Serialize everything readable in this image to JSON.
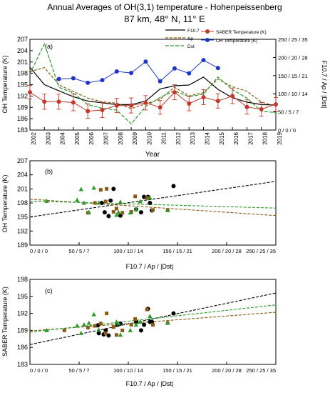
{
  "figure": {
    "title_line1": "Annual Averages of OH(3,1) temperature - Hohenpeissenberg",
    "title_line2": "87 km, 48° N, 11° E"
  },
  "chart_data": [
    {
      "panel": "(a)",
      "type": "line",
      "x": [
        2002,
        2003,
        2004,
        2005,
        2006,
        2007,
        2008,
        2009,
        2010,
        2011,
        2012,
        2013,
        2014,
        2015,
        2016,
        2017,
        2018,
        2019
      ],
      "xticks": [
        "2002",
        "2003",
        "2004",
        "2005",
        "2006",
        "2007",
        "2008",
        "2009",
        "2010",
        "2011",
        "2012",
        "2013",
        "2014",
        "2015",
        "2016",
        "2017",
        "2018",
        "2019"
      ],
      "xlabel": "Year",
      "ylabel_left": "OH Temperature (K)",
      "ylim_left": [
        183,
        207
      ],
      "yticks_left": [
        "183",
        "186",
        "189",
        "192",
        "195",
        "198",
        "201",
        "204",
        "207"
      ],
      "ylabel_right": "F10.7 / Ap / |Dst|",
      "ylim_right_F107": [
        0,
        250
      ],
      "yticks_right": [
        "0 / 0 / 0",
        "50 / 5 / 7",
        "100 / 10 / 14",
        "150 / 15 / 21",
        "200 / 20 / 28",
        "250 / 25 / 35"
      ],
      "legend": [
        "F10.7",
        "Ap",
        "Dst",
        "SABER Temperature (K)",
        "OH Temperature (K)"
      ],
      "series": [
        {
          "name": "F10.7",
          "axis": "right",
          "style": "solid",
          "color": "#000000",
          "values": [
            173,
            125,
            108,
            92,
            80,
            75,
            70,
            70,
            80,
            113,
            122,
            124,
            146,
            112,
            89,
            77,
            70,
            69
          ]
        },
        {
          "name": "Ap",
          "axis": "right",
          "style": "dashed",
          "color": "#8a5a19",
          "values": [
            161,
            172,
            125,
            106,
            88,
            78,
            74,
            59,
            72,
            85,
            118,
            94,
            103,
            140,
            119,
            107,
            77,
            66
          ]
        },
        {
          "name": "Dst",
          "axis": "right",
          "style": "dashed",
          "color": "#2e9a2e",
          "values": [
            155,
            238,
            118,
            102,
            70,
            60,
            55,
            17,
            65,
            90,
            108,
            92,
            99,
            146,
            111,
            88,
            52,
            48
          ]
        },
        {
          "name": "SABER Temperature (K)",
          "axis": "left",
          "color": "#c0392b",
          "values": [
            193.0,
            190.5,
            190.5,
            190.3,
            188.0,
            188.3,
            189.5,
            189.5,
            190.2,
            189.0,
            193.0,
            190.0,
            191.7,
            190.7,
            192.0,
            189.1,
            188.5,
            189.8
          ],
          "error": [
            1.8,
            2.0,
            2.0,
            2.2,
            1.9,
            2.0,
            1.9,
            2.0,
            1.9,
            1.8,
            2.0,
            1.9,
            2.0,
            1.9,
            2.0,
            1.9,
            1.8,
            1.8
          ]
        },
        {
          "name": "OH Temperature (K)",
          "axis": "left",
          "color": "#1f35c7",
          "x": [
            2004,
            2005,
            2006,
            2007,
            2008,
            2009,
            2010,
            2011,
            2012,
            2013,
            2014,
            2015
          ],
          "values": [
            196.5,
            196.7,
            195.5,
            196.2,
            198.5,
            198.1,
            201.1,
            195.9,
            199.3,
            198.0,
            201.5,
            199.4
          ]
        }
      ]
    },
    {
      "panel": "(b)",
      "type": "scatter",
      "ylabel": "OH Temperature (K)",
      "xlabel": "F10.7 / Ap / |Dst|",
      "ylim": [
        189,
        207
      ],
      "yticks": [
        "189",
        "192",
        "195",
        "198",
        "201",
        "204",
        "207"
      ],
      "xlim_F107": [
        0,
        250
      ],
      "xticks": [
        "0 / 0 / 0",
        "50 / 5 / 7",
        "100 / 10 / 14",
        "150 / 15 / 21",
        "200 / 20 / 28",
        "250 / 25 / 35"
      ],
      "series": [
        {
          "name": "F10.7",
          "marker": "circle",
          "color": "#000000",
          "points": [
            [
              73,
              198.0
            ],
            [
              76,
              196.0
            ],
            [
              80,
              195.2
            ],
            [
              82,
              198.5
            ],
            [
              85,
              201.0
            ],
            [
              92,
              195.3
            ],
            [
              108,
              196.6
            ],
            [
              113,
              196.0
            ],
            [
              116,
              199.3
            ],
            [
              120,
              199.3
            ],
            [
              122,
              198.0
            ],
            [
              124,
              196.4
            ],
            [
              146,
              201.6
            ]
          ],
          "fit": [
            [
              0,
              195.0
            ],
            [
              250,
              202.6
            ]
          ]
        },
        {
          "name": "Ap",
          "marker": "square",
          "color": "#8a5a19",
          "points": [
            [
              59,
              195.9
            ],
            [
              66,
              198.0
            ],
            [
              72,
              200.8
            ],
            [
              77,
              198.3
            ],
            [
              78,
              201.0
            ],
            [
              85,
              196.1
            ],
            [
              88,
              196.8
            ],
            [
              94,
              195.9
            ],
            [
              103,
              196.1
            ],
            [
              107,
              199.4
            ],
            [
              119,
              199.1
            ],
            [
              125,
              196.5
            ],
            [
              140,
              196.4
            ]
          ],
          "fit": [
            [
              0,
              198.8
            ],
            [
              250,
              195.3
            ]
          ]
        },
        {
          "name": "Dst",
          "marker": "triangle",
          "color": "#2e9a2e",
          "points": [
            [
              17,
              198.4
            ],
            [
              48,
              198.6
            ],
            [
              52,
              200.9
            ],
            [
              55,
              198.0
            ],
            [
              60,
              196.0
            ],
            [
              65,
              201.2
            ],
            [
              70,
              198.0
            ],
            [
              88,
              195.4
            ],
            [
              90,
              196.0
            ],
            [
              92,
              198.2
            ],
            [
              102,
              195.9
            ],
            [
              108,
              196.6
            ],
            [
              112,
              198.3
            ],
            [
              122,
              199.1
            ],
            [
              140,
              196.4
            ]
          ],
          "fit": [
            [
              0,
              198.4
            ],
            [
              250,
              196.9
            ]
          ]
        }
      ]
    },
    {
      "panel": "(c)",
      "type": "scatter",
      "ylabel": "SABER Temperature (K)",
      "xlabel": "F10.7 / Ap / |Dst|",
      "ylim": [
        183,
        198
      ],
      "yticks": [
        "183",
        "186",
        "189",
        "192",
        "195",
        "198"
      ],
      "xlim_F107": [
        0,
        250
      ],
      "xticks": [
        "0 / 0 / 0",
        "50 / 5 / 7",
        "100 / 10 / 14",
        "150 / 15 / 21",
        "200 / 20 / 28",
        "250 / 25 / 35"
      ],
      "series": [
        {
          "name": "F10.7",
          "marker": "circle",
          "color": "#000000",
          "points": [
            [
              69,
              189.9
            ],
            [
              70,
              188.5
            ],
            [
              75,
              188.3
            ],
            [
              77,
              189.0
            ],
            [
              80,
              188.1
            ],
            [
              89,
              190.0
            ],
            [
              92,
              190.2
            ],
            [
              108,
              190.5
            ],
            [
              113,
              189.0
            ],
            [
              116,
              190.0
            ],
            [
              120,
              192.8
            ],
            [
              122,
              190.5
            ],
            [
              124,
              190.5
            ],
            [
              146,
              192.0
            ]
          ],
          "fit": [
            [
              0,
              186.5
            ],
            [
              250,
              195.6
            ]
          ]
        },
        {
          "name": "Ap",
          "marker": "square",
          "color": "#8a5a19",
          "points": [
            [
              59,
              189.5
            ],
            [
              66,
              189.8
            ],
            [
              72,
              190.2
            ],
            [
              77,
              188.5
            ],
            [
              78,
              192.0
            ],
            [
              85,
              189.6
            ],
            [
              88,
              188.2
            ],
            [
              94,
              189.0
            ],
            [
              103,
              190.0
            ],
            [
              107,
              191.0
            ],
            [
              119,
              192.7
            ],
            [
              125,
              190.0
            ],
            [
              140,
              190.3
            ],
            [
              35,
              189.0
            ]
          ],
          "fit": [
            [
              0,
              188.9
            ],
            [
              250,
              192.2
            ]
          ]
        },
        {
          "name": "Dst",
          "marker": "triangle",
          "color": "#2e9a2e",
          "points": [
            [
              17,
              189.0
            ],
            [
              48,
              189.8
            ],
            [
              52,
              188.5
            ],
            [
              55,
              190.0
            ],
            [
              60,
              190.3
            ],
            [
              65,
              191.8
            ],
            [
              70,
              189.1
            ],
            [
              88,
              190.5
            ],
            [
              90,
              190.2
            ],
            [
              92,
              188.2
            ],
            [
              102,
              189.0
            ],
            [
              108,
              190.0
            ],
            [
              112,
              190.5
            ],
            [
              122,
              191.5
            ],
            [
              140,
              190.3
            ]
          ],
          "fit": [
            [
              0,
              188.7
            ],
            [
              250,
              193.5
            ]
          ]
        }
      ]
    }
  ]
}
